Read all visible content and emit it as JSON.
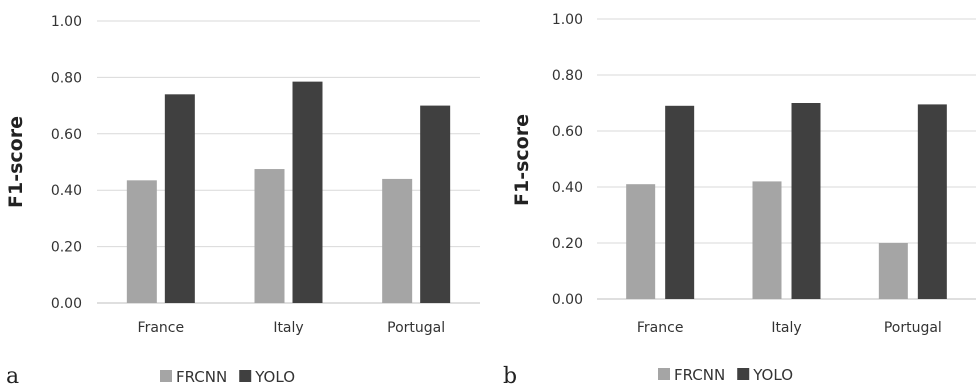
{
  "chart_data": [
    {
      "type": "bar",
      "panel": "a",
      "categories": [
        "France",
        "Italy",
        "Portugal"
      ],
      "ylabel": "F1-score",
      "ylim": [
        0,
        1
      ],
      "yticks": [
        "0.00",
        "0.20",
        "0.40",
        "0.60",
        "0.80",
        "1.00"
      ],
      "grid": true,
      "legend_position": "bottom",
      "series": [
        {
          "name": "FRCNN",
          "color": "#a5a5a5",
          "values": [
            0.435,
            0.475,
            0.44
          ]
        },
        {
          "name": "YOLO",
          "color": "#404040",
          "values": [
            0.74,
            0.785,
            0.7
          ]
        }
      ]
    },
    {
      "type": "bar",
      "panel": "b",
      "categories": [
        "France",
        "Italy",
        "Portugal"
      ],
      "ylabel": "F1-score",
      "ylim": [
        0,
        1
      ],
      "yticks": [
        "0.00",
        "0.20",
        "0.40",
        "0.60",
        "0.80",
        "1.00"
      ],
      "grid": true,
      "legend_position": "bottom",
      "series": [
        {
          "name": "FRCNN",
          "color": "#a5a5a5",
          "values": [
            0.41,
            0.42,
            0.2
          ]
        },
        {
          "name": "YOLO",
          "color": "#404040",
          "values": [
            0.69,
            0.7,
            0.695
          ]
        }
      ]
    }
  ]
}
